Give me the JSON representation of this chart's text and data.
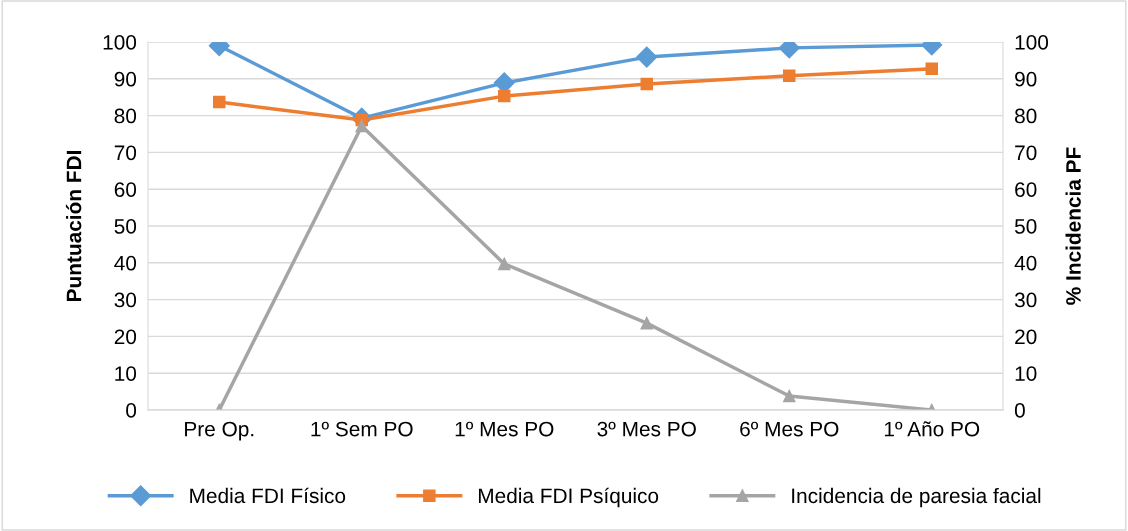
{
  "chart_data": {
    "type": "line",
    "ylabel": "Puntuación FDI",
    "y2label": "% Incidencia PF",
    "categories": [
      "Pre Op.",
      "1º Sem PO",
      "1º Mes PO",
      "3º Mes PO",
      "6º Mes PO",
      "1º Año PO"
    ],
    "series": [
      {
        "name": "Media FDI Físico",
        "color": "#5b9bd5",
        "marker": "diamond",
        "values": [
          99,
          79.3,
          88.9,
          95.9,
          98.4,
          99.2
        ]
      },
      {
        "name": "Media FDI Psíquico",
        "color": "#ed7d31",
        "marker": "square",
        "values": [
          83.7,
          78.8,
          85.3,
          88.6,
          90.8,
          92.7
        ]
      },
      {
        "name": "Incidencia de paresia facial",
        "color": "#a5a5a5",
        "marker": "triangle",
        "axis": "y2",
        "values": [
          0,
          77.2,
          39.7,
          23.6,
          3.8,
          0
        ]
      }
    ],
    "ylim": [
      0,
      100
    ],
    "yticks": [
      0,
      10,
      20,
      30,
      40,
      50,
      60,
      70,
      80,
      90,
      100
    ],
    "y2lim": [
      0,
      100
    ],
    "y2ticks": [
      0,
      10,
      20,
      30,
      40,
      50,
      60,
      70,
      80,
      90,
      100
    ],
    "grid": "y",
    "legend": "bottom"
  }
}
